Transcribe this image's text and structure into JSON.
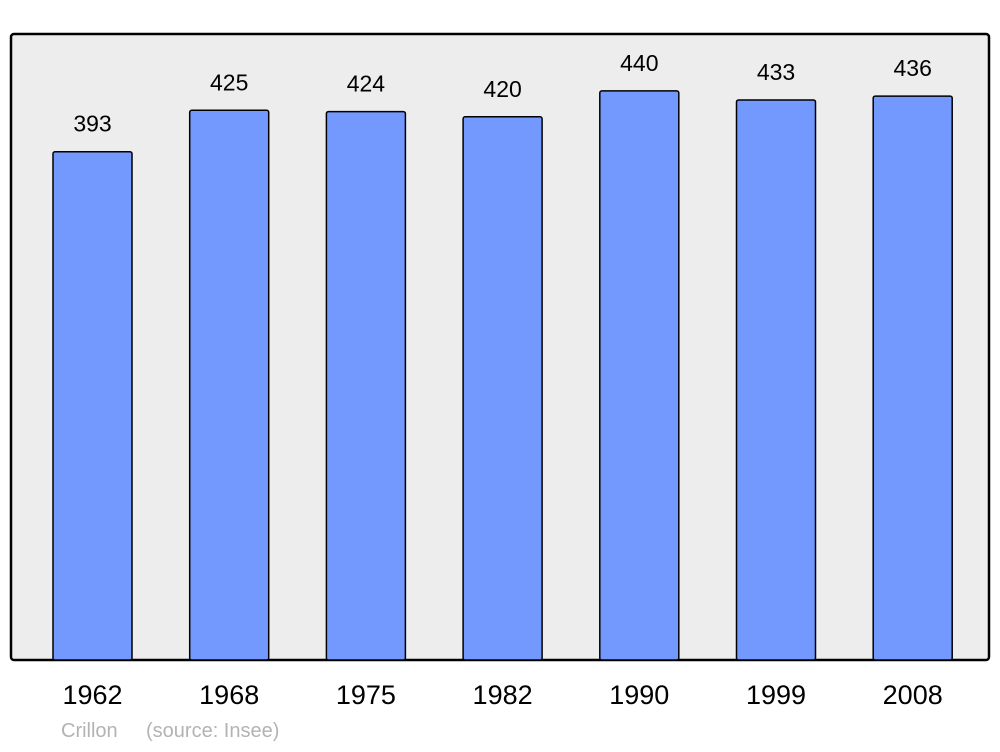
{
  "chart_data": {
    "type": "bar",
    "title": "",
    "xlabel": "",
    "ylabel": "",
    "categories": [
      "1962",
      "1968",
      "1975",
      "1982",
      "1990",
      "1999",
      "2008"
    ],
    "values": [
      393,
      425,
      424,
      420,
      440,
      433,
      436
    ],
    "ylim": [
      0,
      484
    ],
    "grid": false,
    "data_labels": true,
    "colors": {
      "bar": "#7399ff",
      "plot_background": "#ededed",
      "border": "#000000",
      "footer": "#b3b3b3"
    }
  },
  "footer": {
    "place": "Crillon",
    "source": "(source: Insee)"
  }
}
